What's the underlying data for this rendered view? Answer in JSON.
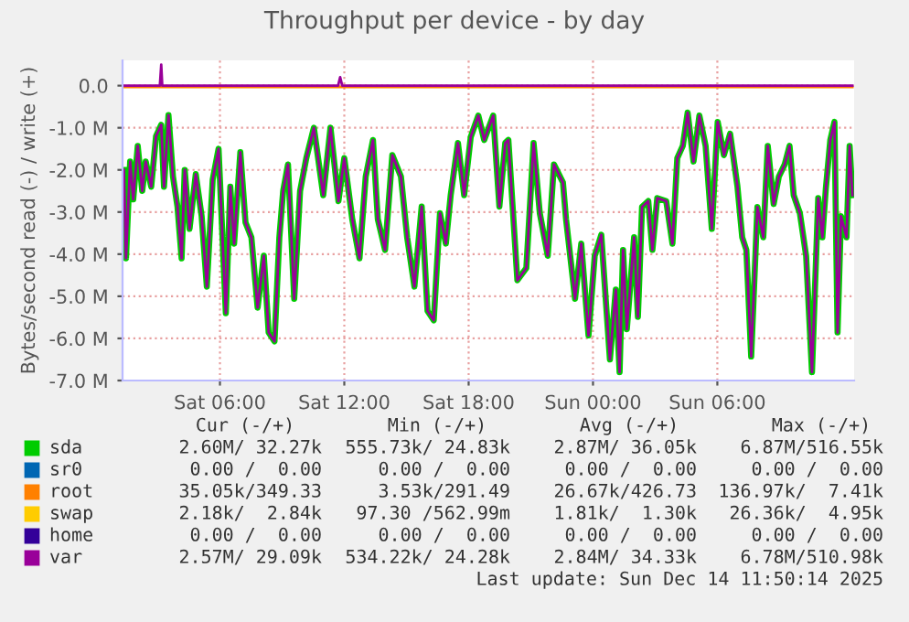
{
  "chart_data": {
    "type": "line",
    "title": "Throughput per device - by day",
    "ylabel": "Bytes/second read (-) / write (+)",
    "x": [
      "2025-12-13T01:22",
      "2025-12-13T01:28",
      "2025-12-13T01:40",
      "2025-12-13T01:49",
      "2025-12-13T02:02",
      "2025-12-13T02:15",
      "2025-12-13T02:25",
      "2025-12-13T02:41",
      "2025-12-13T02:55",
      "2025-12-13T03:10",
      "2025-12-13T03:18",
      "2025-12-13T03:31",
      "2025-12-13T03:44",
      "2025-12-13T03:57",
      "2025-12-13T04:09",
      "2025-12-13T04:18",
      "2025-12-13T04:32",
      "2025-12-13T04:50",
      "2025-12-13T05:07",
      "2025-12-13T05:22",
      "2025-12-13T05:39",
      "2025-12-13T05:56",
      "2025-12-13T06:17",
      "2025-12-13T06:30",
      "2025-12-13T06:41",
      "2025-12-13T06:59",
      "2025-12-13T07:14",
      "2025-12-13T07:31",
      "2025-12-13T07:49",
      "2025-12-13T08:07",
      "2025-12-13T08:21",
      "2025-12-13T08:38",
      "2025-12-13T08:52",
      "2025-12-13T09:03",
      "2025-12-13T09:17",
      "2025-12-13T09:35",
      "2025-12-13T09:52",
      "2025-12-13T10:10",
      "2025-12-13T10:32",
      "2025-12-13T10:59",
      "2025-12-13T11:20",
      "2025-12-13T11:43",
      "2025-12-13T12:00",
      "2025-12-13T12:23",
      "2025-12-13T12:44",
      "2025-12-13T13:02",
      "2025-12-13T13:23",
      "2025-12-13T13:37",
      "2025-12-13T13:58",
      "2025-12-13T14:19",
      "2025-12-13T14:44",
      "2025-12-13T15:02",
      "2025-12-13T15:23",
      "2025-12-13T15:44",
      "2025-12-13T16:01",
      "2025-12-13T16:19",
      "2025-12-13T16:37",
      "2025-12-13T16:54",
      "2025-12-13T17:08",
      "2025-12-13T17:29",
      "2025-12-13T17:47",
      "2025-12-13T18:06",
      "2025-12-13T18:28",
      "2025-12-13T18:45",
      "2025-12-13T19:11",
      "2025-12-13T19:29",
      "2025-12-13T19:46",
      "2025-12-13T19:55",
      "2025-12-13T20:21",
      "2025-12-13T20:47",
      "2025-12-13T21:08",
      "2025-12-13T21:26",
      "2025-12-13T21:49",
      "2025-12-13T22:07",
      "2025-12-13T22:33",
      "2025-12-13T22:42",
      "2025-12-13T23:08",
      "2025-12-13T23:26",
      "2025-12-13T23:47",
      "2025-12-14T00:05",
      "2025-12-14T00:24",
      "2025-12-14T00:49",
      "2025-12-14T01:06",
      "2025-12-14T01:17",
      "2025-12-14T01:27",
      "2025-12-14T01:38",
      "2025-12-14T01:59",
      "2025-12-14T02:10",
      "2025-12-14T02:22",
      "2025-12-14T02:40",
      "2025-12-14T02:52",
      "2025-12-14T03:06",
      "2025-12-14T03:32",
      "2025-12-14T03:50",
      "2025-12-14T04:04",
      "2025-12-14T04:20",
      "2025-12-14T04:34",
      "2025-12-14T04:51",
      "2025-12-14T05:08",
      "2025-12-14T05:26",
      "2025-12-14T05:44",
      "2025-12-14T06:01",
      "2025-12-14T06:19",
      "2025-12-14T06:37",
      "2025-12-14T06:58",
      "2025-12-14T07:12",
      "2025-12-14T07:24",
      "2025-12-14T07:38",
      "2025-12-14T07:56",
      "2025-12-14T08:13",
      "2025-12-14T08:26",
      "2025-12-14T08:43",
      "2025-12-14T08:58",
      "2025-12-14T09:15",
      "2025-12-14T09:29",
      "2025-12-14T09:41",
      "2025-12-14T09:59",
      "2025-12-14T10:17",
      "2025-12-14T10:34",
      "2025-12-14T10:52",
      "2025-12-14T11:04",
      "2025-12-14T11:14",
      "2025-12-14T11:27",
      "2025-12-14T11:39",
      "2025-12-14T11:48",
      "2025-12-14T11:58",
      "2025-12-14T12:14",
      "2025-12-14T12:23",
      "2025-12-14T12:31"
    ],
    "series": [
      {
        "name": "sda",
        "color": "#00cc00",
        "values": [
          -2.0,
          -4.1,
          -1.8,
          -2.7,
          -1.43,
          -2.5,
          -1.8,
          -2.4,
          -1.2,
          -0.93,
          -2.4,
          -0.7,
          -2.16,
          -2.87,
          -4.1,
          -2.0,
          -3.4,
          -2.1,
          -3.1,
          -4.77,
          -2.23,
          -1.5,
          -5.4,
          -2.4,
          -3.75,
          -1.58,
          -3.25,
          -3.6,
          -5.27,
          -4.04,
          -5.86,
          -6.07,
          -3.6,
          -2.5,
          -1.87,
          -5.06,
          -2.5,
          -1.72,
          -1.0,
          -2.6,
          -1.0,
          -2.74,
          -1.72,
          -3.17,
          -4.1,
          -2.16,
          -1.29,
          -3.17,
          -3.9,
          -1.65,
          -2.16,
          -3.6,
          -4.77,
          -2.87,
          -5.35,
          -5.57,
          -3.03,
          -3.75,
          -2.6,
          -1.36,
          -2.6,
          -1.22,
          -0.71,
          -1.29,
          -0.71,
          -2.87,
          -1.36,
          -1.29,
          -4.62,
          -4.33,
          -1.36,
          -3.03,
          -4.04,
          -1.87,
          -2.3,
          -3.17,
          -5.06,
          -3.75,
          -5.93,
          -4.04,
          -3.54,
          -6.5,
          -4.84,
          -6.8,
          -3.9,
          -5.78,
          -3.6,
          -5.49,
          -2.88,
          -2.74,
          -3.9,
          -2.67,
          -2.74,
          -3.75,
          -1.72,
          -1.43,
          -0.64,
          -1.8,
          -0.71,
          -1.43,
          -3.4,
          -0.86,
          -1.65,
          -1.14,
          -2.38,
          -3.6,
          -3.9,
          -6.43,
          -2.88,
          -3.6,
          -1.43,
          -2.81,
          -2.16,
          -1.87,
          -1.43,
          -2.6,
          -3.03,
          -4.04,
          -6.8,
          -2.67,
          -3.6,
          -2.45,
          -1.29,
          -0.86,
          -5.86,
          -3.1,
          -3.6,
          -1.43,
          -2.6
        ]
      },
      {
        "name": "sr0",
        "color": "#0066b3",
        "values": [
          null,
          null,
          null,
          null,
          null,
          null,
          null,
          null,
          null,
          null,
          null,
          null,
          null,
          null,
          null,
          null,
          null,
          null,
          null,
          null,
          null,
          null,
          null,
          null,
          null,
          null,
          null,
          null,
          null,
          null,
          null,
          null,
          null,
          null,
          null,
          null,
          null,
          null,
          null,
          null,
          null,
          null,
          null,
          null,
          null,
          null,
          null,
          null,
          null,
          null,
          null,
          null,
          null,
          null,
          null,
          null,
          null,
          null,
          null,
          null,
          null,
          null,
          null,
          null,
          null,
          null,
          null,
          null,
          null,
          null,
          null,
          null,
          null,
          null,
          null,
          null,
          null,
          null,
          null,
          null,
          null,
          null,
          null,
          null,
          null,
          null,
          null,
          null,
          null,
          null,
          null,
          null,
          null,
          null,
          null,
          null,
          null,
          null,
          null,
          null,
          null,
          null,
          null,
          null,
          null,
          null,
          null,
          null,
          null,
          null,
          null,
          null,
          null,
          null,
          null,
          null,
          null,
          null,
          null,
          null,
          null,
          null,
          null,
          null,
          null,
          null,
          null,
          null,
          null
        ]
      },
      {
        "name": "root",
        "color": "#ff8000",
        "x": [
          "2025-12-13T01:22",
          "2025-12-14T12:31"
        ],
        "values": [
          -0.03,
          -0.03
        ]
      },
      {
        "name": "swap",
        "color": "#ffcc00",
        "values": [
          null,
          null,
          null,
          null,
          null,
          null,
          null,
          null,
          null,
          null,
          null,
          null,
          null,
          null,
          null,
          null,
          null,
          null,
          null,
          null,
          null,
          null,
          null,
          null,
          null,
          null,
          null,
          null,
          null,
          null,
          null,
          null,
          null,
          null,
          null,
          null,
          null,
          null,
          null,
          null,
          null,
          null,
          null,
          null,
          null,
          null,
          null,
          null,
          null,
          null,
          null,
          null,
          null,
          null,
          null,
          null,
          null,
          null,
          null,
          null,
          null,
          null,
          null,
          null,
          null,
          null,
          null,
          null,
          null,
          null,
          null,
          null,
          null,
          null,
          null,
          null,
          null,
          null,
          null,
          null,
          null,
          null,
          null,
          null,
          null,
          null,
          null,
          null,
          null,
          null,
          null,
          null,
          null,
          null,
          null,
          null,
          null,
          null,
          null,
          null,
          null,
          null,
          null,
          null,
          null,
          null,
          null,
          null,
          null,
          null,
          null,
          null,
          null,
          null,
          null,
          null,
          null,
          null,
          null,
          null,
          null,
          null,
          null,
          null,
          null,
          null,
          null,
          null,
          null
        ]
      },
      {
        "name": "home",
        "color": "#330099",
        "values": [
          null,
          null,
          null,
          null,
          null,
          null,
          null,
          null,
          null,
          null,
          null,
          null,
          null,
          null,
          null,
          null,
          null,
          null,
          null,
          null,
          null,
          null,
          null,
          null,
          null,
          null,
          null,
          null,
          null,
          null,
          null,
          null,
          null,
          null,
          null,
          null,
          null,
          null,
          null,
          null,
          null,
          null,
          null,
          null,
          null,
          null,
          null,
          null,
          null,
          null,
          null,
          null,
          null,
          null,
          null,
          null,
          null,
          null,
          null,
          null,
          null,
          null,
          null,
          null,
          null,
          null,
          null,
          null,
          null,
          null,
          null,
          null,
          null,
          null,
          null,
          null,
          null,
          null,
          null,
          null,
          null,
          null,
          null,
          null,
          null,
          null,
          null,
          null,
          null,
          null,
          null,
          null,
          null,
          null,
          null,
          null,
          null,
          null,
          null,
          null,
          null,
          null,
          null,
          null,
          null,
          null,
          null,
          null,
          null,
          null,
          null,
          null,
          null,
          null,
          null,
          null,
          null,
          null,
          null,
          null,
          null,
          null,
          null,
          null,
          null,
          null,
          null,
          null,
          null
        ]
      },
      {
        "name": "var",
        "color": "#990099",
        "values": [
          -2.0,
          -4.1,
          -1.8,
          -2.7,
          -1.43,
          -2.5,
          -1.8,
          -2.4,
          -1.2,
          -0.93,
          -2.4,
          -0.7,
          -2.16,
          -2.87,
          -4.1,
          -2.0,
          -3.4,
          -2.1,
          -3.1,
          -4.77,
          -2.23,
          -1.5,
          -5.4,
          -2.4,
          -3.75,
          -1.58,
          -3.25,
          -3.6,
          -5.27,
          -4.04,
          -5.86,
          -6.07,
          -3.6,
          -2.5,
          -1.87,
          -5.06,
          -2.5,
          -1.72,
          -1.0,
          -2.6,
          -1.0,
          -2.74,
          -1.72,
          -3.17,
          -4.1,
          -2.16,
          -1.29,
          -3.17,
          -3.9,
          -1.65,
          -2.16,
          -3.6,
          -4.77,
          -2.87,
          -5.35,
          -5.57,
          -3.03,
          -3.75,
          -2.6,
          -1.36,
          -2.6,
          -1.22,
          -0.71,
          -1.29,
          -0.71,
          -2.87,
          -1.36,
          -1.29,
          -4.62,
          -4.33,
          -1.36,
          -3.03,
          -4.04,
          -1.87,
          -2.3,
          -3.17,
          -5.06,
          -3.75,
          -5.93,
          -4.04,
          -3.54,
          -6.5,
          -4.84,
          -6.8,
          -3.9,
          -5.78,
          -3.6,
          -5.49,
          -2.88,
          -2.74,
          -3.9,
          -2.67,
          -2.74,
          -3.75,
          -1.72,
          -1.43,
          -0.64,
          -1.8,
          -0.71,
          -1.43,
          -3.4,
          -0.86,
          -1.65,
          -1.14,
          -2.38,
          -3.6,
          -3.9,
          -6.43,
          -2.88,
          -3.6,
          -1.43,
          -2.81,
          -2.16,
          -1.87,
          -1.43,
          -2.6,
          -3.03,
          -4.04,
          -6.8,
          -2.67,
          -3.6,
          -2.45,
          -1.29,
          -0.86,
          -5.86,
          -3.1,
          -3.6,
          -1.43,
          -2.6
        ]
      },
      {
        "color": "#990099",
        "x": [
          "2025-12-13T01:22",
          "2025-12-13T03:06",
          "2025-12-13T03:10",
          "2025-12-13T03:13",
          "2025-12-13T11:42",
          "2025-12-13T11:48",
          "2025-12-13T11:54",
          "2025-12-14T12:31"
        ],
        "values": [
          0,
          0,
          0.5,
          0,
          0,
          0.2,
          0,
          0
        ]
      }
    ],
    "xlim": [
      "2025-12-13T01:18",
      "2025-12-14T12:36"
    ],
    "ylim": [
      -7.0,
      0.6
    ],
    "xticks": [
      {
        "value": "2025-12-13T06:00",
        "label": "Sat 06:00"
      },
      {
        "value": "2025-12-13T12:00",
        "label": "Sat 12:00"
      },
      {
        "value": "2025-12-13T18:00",
        "label": "Sat 18:00"
      },
      {
        "value": "2025-12-14T00:00",
        "label": "Sun 00:00"
      },
      {
        "value": "2025-12-14T06:00",
        "label": "Sun 06:00"
      }
    ],
    "yticks": [
      {
        "value": 0,
        "label": "0.0"
      },
      {
        "value": -1,
        "label": "-1.0 M"
      },
      {
        "value": -2,
        "label": "-2.0 M"
      },
      {
        "value": -3,
        "label": "-3.0 M"
      },
      {
        "value": -4,
        "label": "-4.0 M"
      },
      {
        "value": -5,
        "label": "-5.0 M"
      },
      {
        "value": -6,
        "label": "-6.0 M"
      },
      {
        "value": -7,
        "label": "-7.0 M"
      }
    ],
    "grid": true,
    "legend": "bottom",
    "line_style": "solid",
    "marker": "none",
    "annotations": [
      "Cur (-/+)",
      "Min (-/+)",
      "Avg (-/+)",
      "Max (-/+)",
      "2.60M/ 32.27k",
      "555.73k/ 24.83k",
      "2.87M/ 36.05k",
      "6.87M/516.55k",
      "0.00 /  0.00",
      "0.00 /  0.00",
      "0.00 /  0.00",
      "0.00 /  0.00",
      "35.05k/349.33",
      "3.53k/291.49",
      "26.67k/426.73",
      "136.97k/  7.41k",
      "2.18k/  2.84k",
      "97.30 /562.99m",
      "1.81k/  1.30k",
      "26.36k/  4.95k",
      "0.00 /  0.00",
      "0.00 /  0.00",
      "0.00 /  0.00",
      "0.00 /  0.00",
      "2.57M/ 29.09k",
      "534.22k/ 24.28k",
      "2.84M/ 34.33k",
      "6.78M/510.98k",
      "Last update: Sun Dec 14 11:50:14 2025"
    ]
  }
}
